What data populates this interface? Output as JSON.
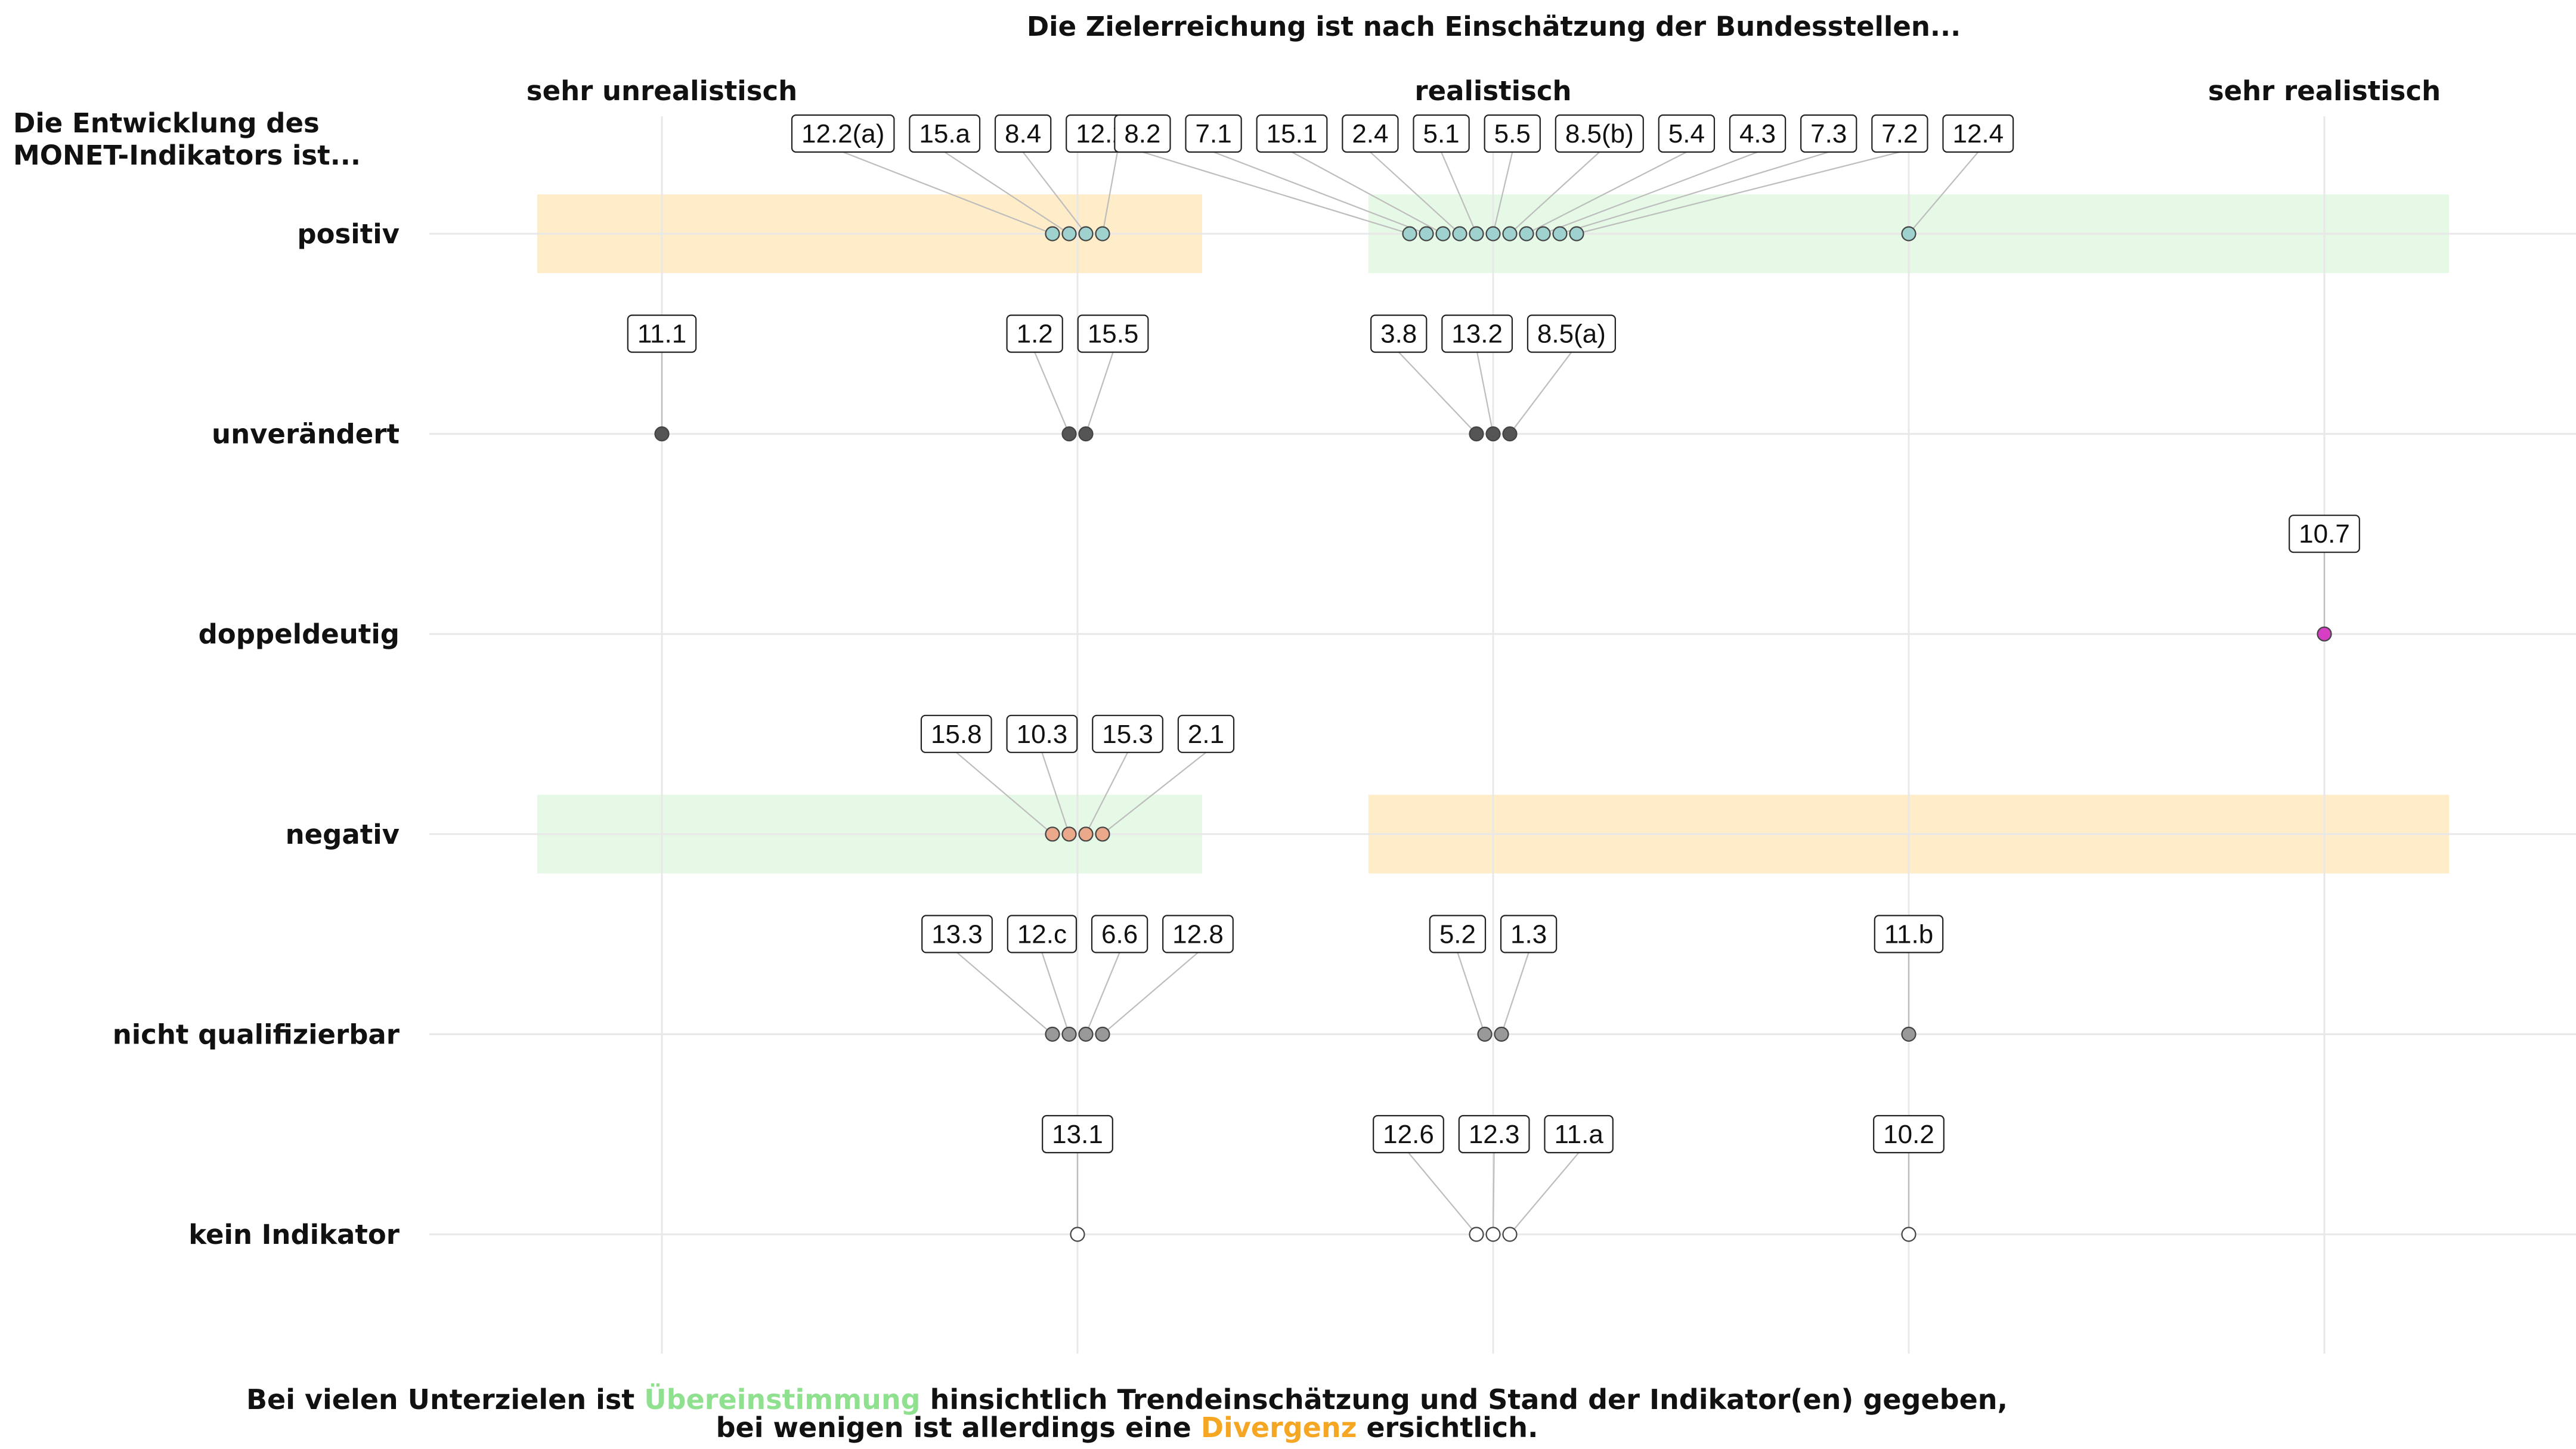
{
  "chart_data": {
    "type": "scatter",
    "title": "Die Zielerreichung ist nach Einschätzung der Bundesstellen...",
    "ylabel_lines": [
      "Die Entwicklung des",
      "MONET-Indikators ist..."
    ],
    "x_categories": [
      "sehr unrealistisch",
      "",
      "realistisch",
      "",
      "sehr realistisch"
    ],
    "y_categories": [
      "positiv",
      "unverändert",
      "doppeldeutig",
      "negativ",
      "nicht qualifizierbar",
      "kein Indikator"
    ],
    "caption": {
      "line1": {
        "before": "Bei vielen Unterzielen ist ",
        "highlight": "Übereinstimmung",
        "after": " hinsichtlich Trendeinschätzung und Stand der Indikator(en) gegeben,"
      },
      "line2": {
        "before": "bei wenigen ist allerdings eine ",
        "highlight": "Divergenz",
        "after": " ersichtlich."
      }
    },
    "colors": {
      "agreement": "#8fe08f",
      "divergence": "#f5a623",
      "agreement_band": "#e6f9e6",
      "divergence_band": "#ffecc8",
      "grid": "#e8e8e8",
      "positiv": "#9fd1cf",
      "unveraendert": "#555555",
      "doppeldeutig": "#d63fc4",
      "negativ": "#e9a98a",
      "nicht_qualifizierbar": "#999999",
      "kein_indikator": "#ffffff"
    },
    "bands": [
      {
        "row": "positiv",
        "x_from": 0.7,
        "x_to": 2.3,
        "kind": "divergence"
      },
      {
        "row": "positiv",
        "x_from": 2.7,
        "x_to": 5.3,
        "kind": "agreement"
      },
      {
        "row": "negativ",
        "x_from": 0.7,
        "x_to": 2.3,
        "kind": "agreement"
      },
      {
        "row": "negativ",
        "x_from": 2.7,
        "x_to": 5.3,
        "kind": "divergence"
      }
    ],
    "series": [
      {
        "row": "positiv",
        "x": 2,
        "labels": [
          "12.2(a)",
          "15.a",
          "8.4",
          "12.2(b)"
        ]
      },
      {
        "row": "positiv",
        "x": 3,
        "labels": [
          "8.2",
          "7.1",
          "15.1",
          "2.4",
          "5.1",
          "5.5",
          "8.5(b)",
          "5.4",
          "4.3",
          "7.3",
          "7.2"
        ]
      },
      {
        "row": "positiv",
        "x": 4,
        "labels": [
          "12.4"
        ]
      },
      {
        "row": "unverändert",
        "x": 1,
        "labels": [
          "11.1"
        ]
      },
      {
        "row": "unverändert",
        "x": 2,
        "labels": [
          "1.2",
          "15.5"
        ]
      },
      {
        "row": "unverändert",
        "x": 3,
        "labels": [
          "3.8",
          "13.2",
          "8.5(a)"
        ]
      },
      {
        "row": "doppeldeutig",
        "x": 5,
        "labels": [
          "10.7"
        ]
      },
      {
        "row": "negativ",
        "x": 2,
        "labels": [
          "15.8",
          "10.3",
          "15.3",
          "2.1"
        ]
      },
      {
        "row": "nicht qualifizierbar",
        "x": 2,
        "labels": [
          "13.3",
          "12.c",
          "6.6",
          "12.8"
        ]
      },
      {
        "row": "nicht qualifizierbar",
        "x": 3,
        "labels": [
          "5.2",
          "1.3"
        ]
      },
      {
        "row": "nicht qualifizierbar",
        "x": 4,
        "labels": [
          "11.b"
        ]
      },
      {
        "row": "kein Indikator",
        "x": 2,
        "labels": [
          "13.1"
        ]
      },
      {
        "row": "kein Indikator",
        "x": 3,
        "labels": [
          "12.6",
          "12.3",
          "11.a"
        ]
      },
      {
        "row": "kein Indikator",
        "x": 4,
        "labels": [
          "10.2"
        ]
      }
    ]
  }
}
